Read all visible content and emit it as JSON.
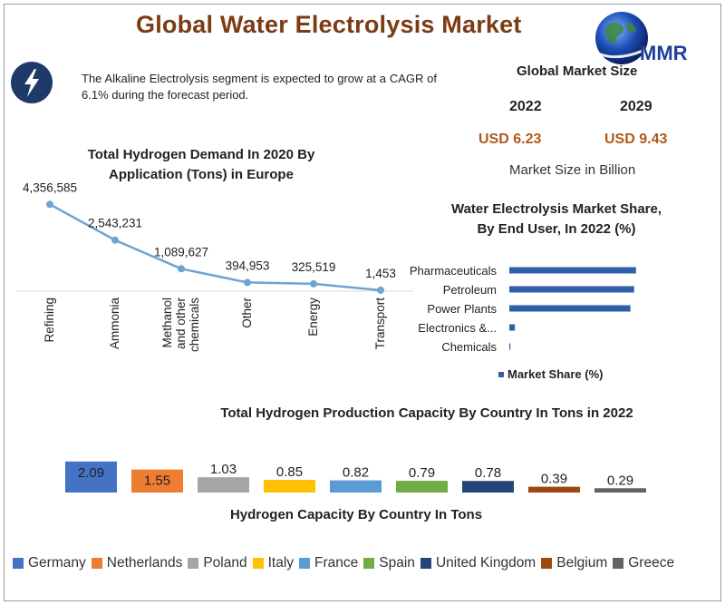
{
  "title": "Global Water Electrolysis Market",
  "logo_text": "MMR",
  "note": "The Alkaline Electrolysis segment is expected to grow at a CAGR of 6.1% during the forecast period.",
  "icons": {
    "bolt": "lightning-bolt-icon",
    "logo": "globe-logo-icon"
  },
  "market_size": {
    "title": "Global Market Size",
    "year1": "2022",
    "year2": "2029",
    "value1": "USD 6.23",
    "value2": "USD 9.43",
    "caption": "Market Size in Billion"
  },
  "chart_data": [
    {
      "type": "line",
      "title": "Total Hydrogen Demand In 2020 By Application (Tons) in Europe",
      "title_line1": "Total Hydrogen Demand In 2020 By",
      "title_line2": "Application (Tons) in Europe",
      "categories": [
        "Refining",
        "Ammonia",
        "Methanol and other chemicals",
        "Other",
        "Energy",
        "Transport"
      ],
      "category_lines": [
        [
          "Refining"
        ],
        [
          "Ammonia"
        ],
        [
          "Methanol",
          "and other",
          "chemicals"
        ],
        [
          "Other"
        ],
        [
          "Energy"
        ],
        [
          "Transport"
        ]
      ],
      "values": [
        4356585,
        2543231,
        1089627,
        394953,
        325519,
        1453
      ],
      "data_labels": [
        "4,356,585",
        "2,543,231",
        "1,089,627",
        "394,953",
        "325,519",
        "1,453"
      ],
      "ylim": [
        0,
        4600000
      ],
      "color": "#6fa3d1",
      "grid": false
    },
    {
      "type": "bar",
      "orientation": "horizontal",
      "title": "Water Electrolysis Market Share, By End User, In 2022 (%)",
      "title_line1": "Water Electrolysis Market Share,",
      "title_line2": "By End User, In 2022 (%)",
      "categories": [
        "Pharmaceuticals",
        "Petroleum",
        "Power Plants",
        "Electronics &...",
        "Chemicals"
      ],
      "series": [
        {
          "name": "Market Share (%)",
          "values": [
            34,
            33.5,
            32.5,
            1.5,
            0.3
          ]
        }
      ],
      "xlim": [
        0,
        36
      ],
      "color": "#2f5fa7",
      "legend_position": "bottom",
      "grid": false
    },
    {
      "type": "bar",
      "title": "Total Hydrogen Production Capacity By Country In Tons in 2022",
      "xlabel": "Hydrogen Capacity By Country In Tons",
      "categories": [
        "Germany",
        "Netherlands",
        "Poland",
        "Italy",
        "France",
        "Spain",
        "United Kingdom",
        "Belgium",
        "Greece"
      ],
      "values": [
        2.09,
        1.55,
        1.03,
        0.85,
        0.82,
        0.79,
        0.78,
        0.39,
        0.29
      ],
      "data_labels": [
        "2.09",
        "1.55",
        "1.03",
        "0.85",
        "0.82",
        "0.79",
        "0.78",
        "0.39",
        "0.29"
      ],
      "colors": [
        "#4472c4",
        "#ed7d31",
        "#a5a5a5",
        "#ffc000",
        "#5b9bd5",
        "#70ad47",
        "#264478",
        "#9e480e",
        "#636363"
      ],
      "ylim": [
        0,
        2.2
      ],
      "legend_position": "bottom",
      "grid": false
    }
  ]
}
